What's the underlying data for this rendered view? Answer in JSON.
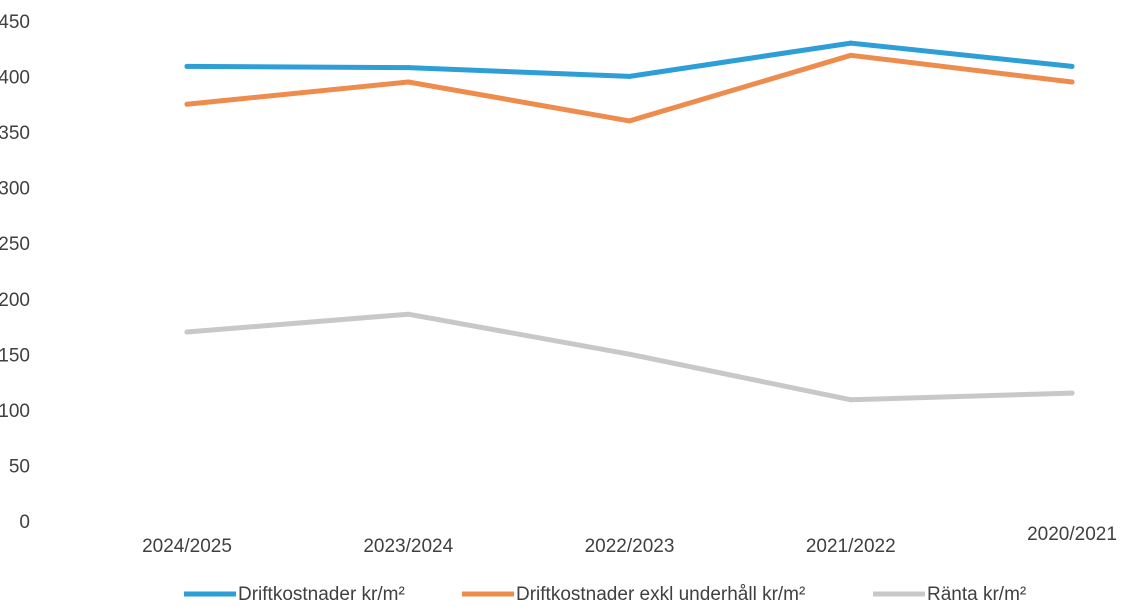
{
  "chart_data": {
    "type": "line",
    "categories": [
      "2024/2025",
      "2023/2024",
      "2022/2023",
      "2021/2022",
      "2020/2021"
    ],
    "series": [
      {
        "name": "Driftkostnader kr/m²",
        "color": "#2e9fd6",
        "values": [
          410,
          409,
          401,
          431,
          410
        ]
      },
      {
        "name": "Driftkostnader exkl underhåll kr/m²",
        "color": "#ee8c4e",
        "values": [
          376,
          396,
          361,
          420,
          396
        ]
      },
      {
        "name": "Ränta kr/m²",
        "color": "#c8c8c8",
        "values": [
          171,
          187,
          151,
          110,
          116
        ]
      }
    ],
    "y_ticks": [
      "0",
      "50",
      "100",
      "150",
      "200",
      "250",
      "300",
      "350",
      "400",
      "450"
    ],
    "ylim": [
      0,
      450
    ],
    "grid": false,
    "legend_position": "bottom",
    "title": "",
    "xlabel": "",
    "ylabel": ""
  }
}
